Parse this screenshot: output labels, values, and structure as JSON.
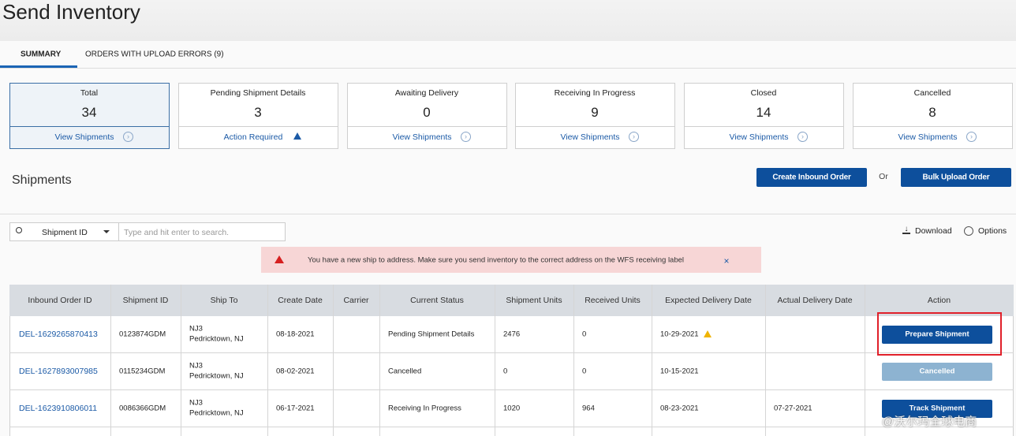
{
  "header": {
    "title": "Send Inventory"
  },
  "tabs": [
    "SUMMARY",
    "ORDERS WITH UPLOAD ERRORS (9)"
  ],
  "cards": [
    {
      "label": "Total",
      "count": 34,
      "link": "View Shipments"
    },
    {
      "label": "Pending Shipment Details",
      "count": 3,
      "link": "Action Required"
    },
    {
      "label": "Awaiting Delivery",
      "count": 0,
      "link": "View Shipments"
    },
    {
      "label": "Receiving In Progress",
      "count": 9,
      "link": "View Shipments"
    },
    {
      "label": "Closed",
      "count": 14,
      "link": "View Shipments"
    },
    {
      "label": "Cancelled",
      "count": 8,
      "link": "View Shipments"
    }
  ],
  "shipments": {
    "title": "Shipments",
    "buttons": [
      "Create Inbound Order",
      "Bulk Upload Order"
    ],
    "separator": "Or"
  },
  "search": {
    "field": "Shipment ID",
    "placeholder": "Type and hit enter to search."
  },
  "tools": [
    "Download",
    "Options"
  ],
  "alert": "You have a new ship to address. Make sure you send inventory to the correct address on the WFS receiving label",
  "table": {
    "columns": [
      "Inbound Order ID",
      "Shipment ID",
      "Ship To",
      "Create Date",
      "Carrier",
      "Current Status",
      "Shipment Units",
      "Received Units",
      "Expected Delivery Date",
      "Actual Delivery Date",
      "Action"
    ],
    "rows": [
      [
        "DEL-1629265870413",
        "0123874GDM",
        [
          "NJ3",
          "Pedricktown, NJ"
        ],
        "08-18-2021",
        null,
        "Pending Shipment Details",
        2476,
        0,
        "10-29-2021",
        null,
        "Prepare Shipment"
      ],
      [
        "DEL-1627893007985",
        "0115234GDM",
        [
          "NJ3",
          "Pedricktown, NJ"
        ],
        "08-02-2021",
        null,
        "Cancelled",
        0,
        0,
        "10-15-2021",
        null,
        "Cancelled"
      ],
      [
        "DEL-1623910806011",
        "0086366GDM",
        [
          "NJ3",
          "Pedricktown, NJ"
        ],
        "06-17-2021",
        null,
        "Receiving In Progress",
        1020,
        964,
        "08-23-2021",
        "07-27-2021",
        "Track Shipment"
      ]
    ]
  },
  "watermark": "@沃尔玛全球电商"
}
